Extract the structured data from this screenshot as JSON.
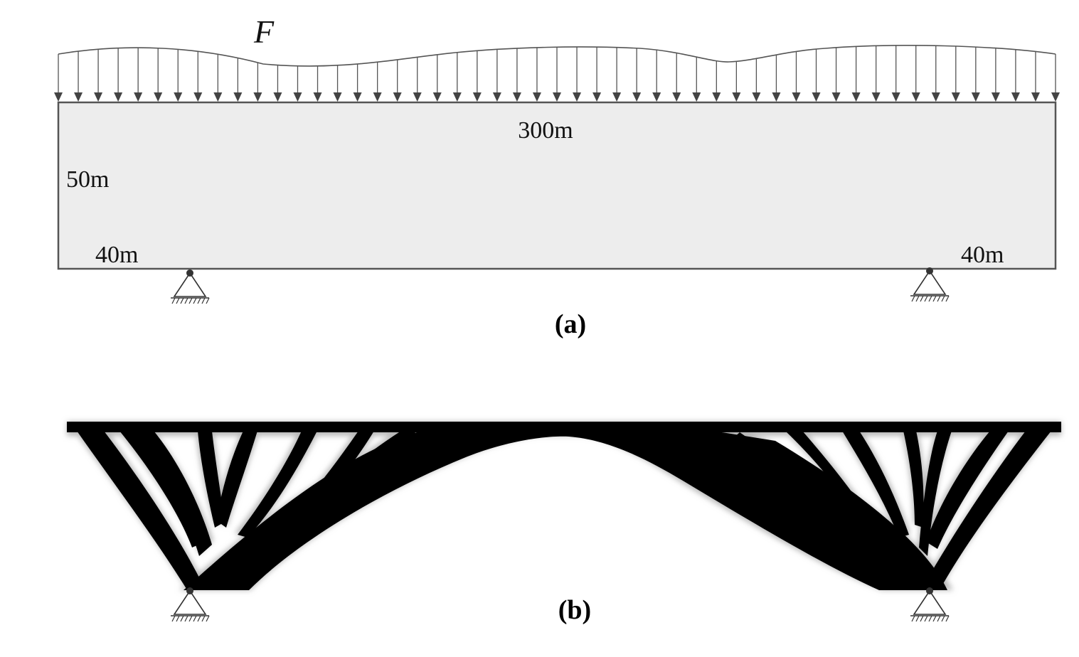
{
  "panel_a": {
    "caption": "(a)",
    "load_label": "F",
    "span_label": "300m",
    "height_label": "50m",
    "left_offset_label": "40m",
    "right_offset_label": "40m"
  },
  "panel_b": {
    "caption": "(b)"
  },
  "colors": {
    "domain_fill": "#ededed",
    "outline": "#555555",
    "material": "#000000",
    "background": "#ffffff"
  }
}
